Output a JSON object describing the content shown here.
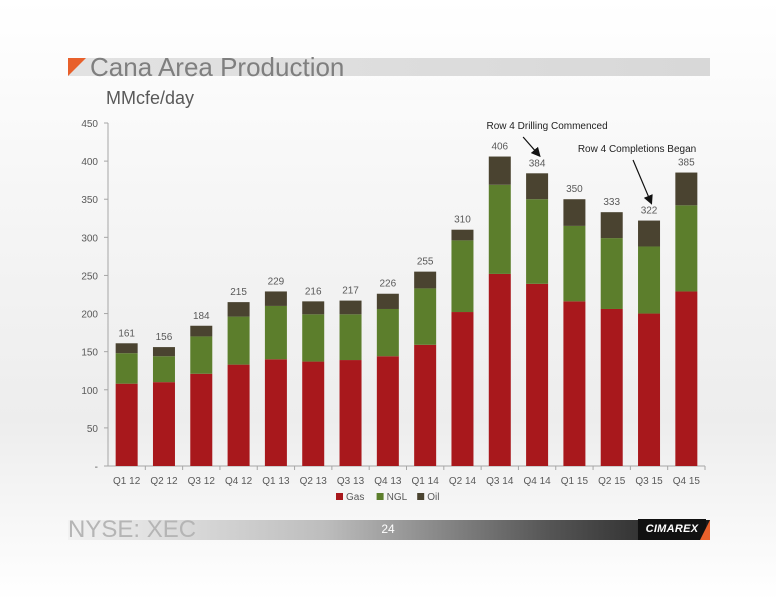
{
  "slide": {
    "title": "Cana Area Production",
    "subtitle": "MMcfe/day",
    "ticker": "NYSE: XEC",
    "page_number": "24",
    "logo_text": "CIMAREX"
  },
  "colors": {
    "gas": "#a8181c",
    "ngl": "#5c7e2c",
    "oil": "#4a4330",
    "accent": "#e8602b"
  },
  "chart_data": {
    "type": "bar",
    "stacked": true,
    "title": "",
    "ylabel": "",
    "xlabel": "",
    "ylim": [
      0,
      450
    ],
    "yticks": [
      0,
      50,
      100,
      150,
      200,
      250,
      300,
      350,
      400,
      450
    ],
    "ytick_labels": [
      "-",
      "50",
      "100",
      "150",
      "200",
      "250",
      "300",
      "350",
      "400",
      "450"
    ],
    "grid": false,
    "legend_position": "bottom",
    "categories": [
      "Q1 12",
      "Q2 12",
      "Q3 12",
      "Q4 12",
      "Q1 13",
      "Q2 13",
      "Q3 13",
      "Q4 13",
      "Q1 14",
      "Q2 14",
      "Q3 14",
      "Q4 14",
      "Q1 15",
      "Q2 15",
      "Q3 15",
      "Q4 15"
    ],
    "series": [
      {
        "name": "Gas",
        "color": "#a8181c",
        "values": [
          108,
          110,
          121,
          133,
          140,
          137,
          139,
          144,
          159,
          202,
          252,
          239,
          216,
          206,
          200,
          229
        ]
      },
      {
        "name": "NGL",
        "color": "#5c7e2c",
        "values": [
          40,
          34,
          49,
          63,
          70,
          62,
          60,
          62,
          74,
          94,
          117,
          111,
          99,
          93,
          88,
          113
        ]
      },
      {
        "name": "Oil",
        "color": "#4a4330",
        "values": [
          13,
          12,
          14,
          19,
          19,
          17,
          18,
          20,
          22,
          14,
          37,
          34,
          35,
          34,
          34,
          43
        ]
      }
    ],
    "totals": [
      161,
      156,
      184,
      215,
      229,
      216,
      217,
      226,
      255,
      310,
      406,
      384,
      350,
      333,
      322,
      385
    ],
    "annotations": [
      {
        "text": "Row 4 Drilling Commenced",
        "target": "Q4 14"
      },
      {
        "text": "Row 4 Completions Began",
        "target": "Q3 15"
      }
    ]
  }
}
